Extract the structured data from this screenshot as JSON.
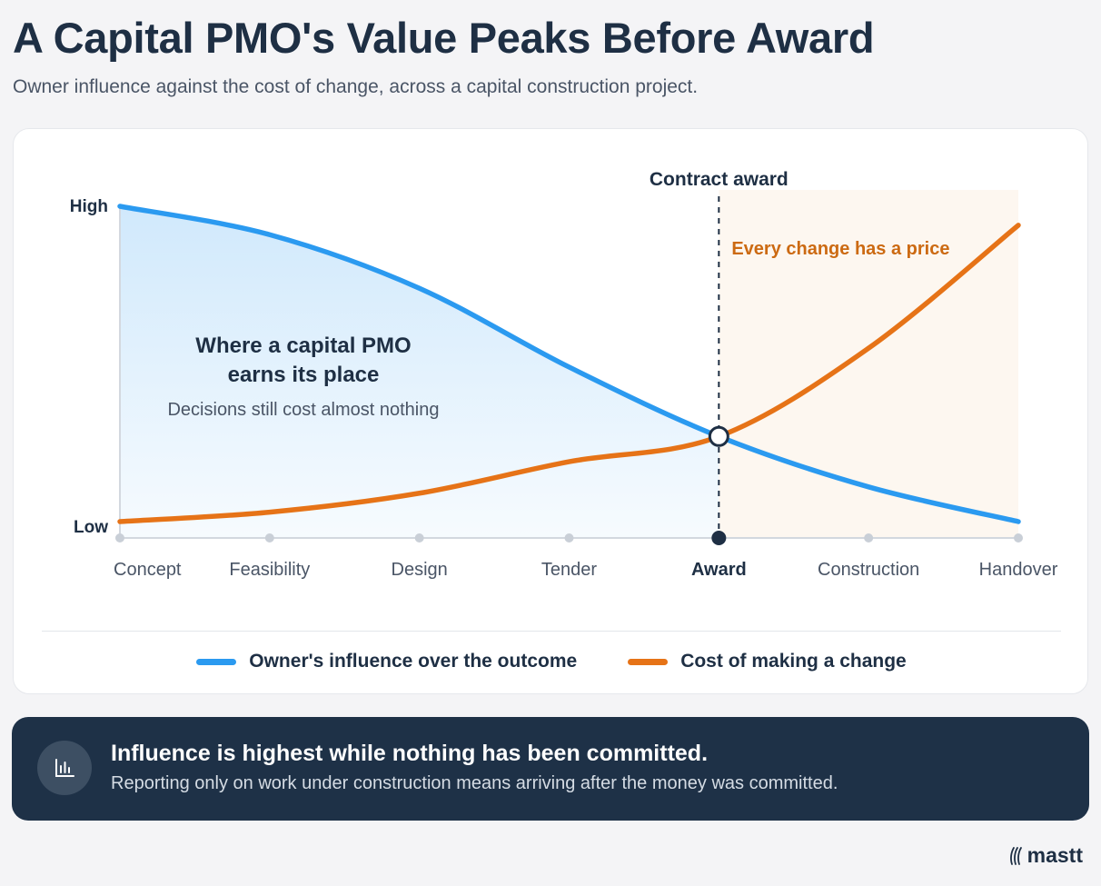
{
  "page": {
    "title": "A Capital PMO's Value Peaks Before Award",
    "subtitle": "Owner influence against the cost of change, across a capital construction project."
  },
  "chart_data": {
    "type": "line",
    "x": [
      "Concept",
      "Feasibility",
      "Design",
      "Tender",
      "Award",
      "Construction",
      "Handover"
    ],
    "y_tick_labels": [
      "High",
      "Low"
    ],
    "ylim": [
      0,
      100
    ],
    "highlight_category": "Award",
    "series": [
      {
        "name": "Owner's influence over the outcome",
        "color": "#2b9af0",
        "values": [
          100,
          91,
          74,
          49,
          27,
          11,
          0
        ]
      },
      {
        "name": "Cost of making a change",
        "color": "#e67317",
        "values": [
          0,
          3,
          9,
          19,
          27,
          55,
          94
        ]
      }
    ],
    "annotations": {
      "marker_label": "Contract award",
      "right_zone_label": "Every change has a price",
      "left_zone_title_line1": "Where a capital PMO",
      "left_zone_title_line2": "earns its place",
      "left_zone_note": "Decisions still cost almost nothing"
    },
    "grid": false,
    "legend_position": "bottom"
  },
  "colors": {
    "influence": "#2b9af0",
    "cost": "#e67317",
    "navy": "#1e2f44",
    "zone_fill": "#fdf7f0"
  },
  "callout": {
    "icon": "bar-chart-icon",
    "headline": "Influence is highest while nothing has been committed.",
    "body": "Reporting only on work under construction means arriving after the money was committed."
  },
  "brand": {
    "name": "mastt",
    "icon": "mastt-logo-icon"
  }
}
